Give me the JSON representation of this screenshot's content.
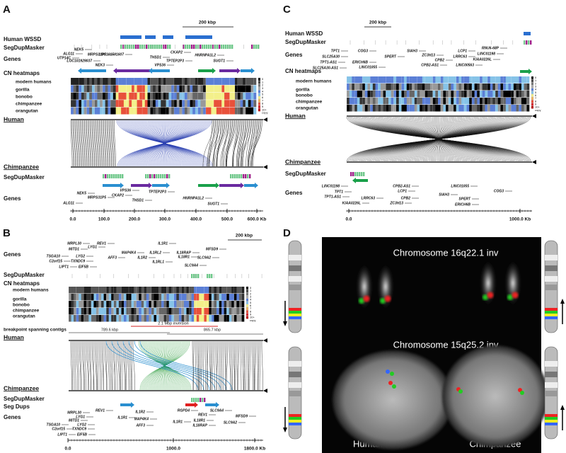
{
  "panels": {
    "A": {
      "label": "A",
      "scale": "200 kbp",
      "tracks_top": [
        "Human WSSD",
        "SegDupMasker",
        "Genes",
        "CN heatmaps"
      ],
      "cn_rows": [
        "modern humans",
        "gorilla",
        "bonobo",
        "chimpanzee",
        "orangutan"
      ],
      "cn_legend": [
        "0",
        "1",
        "2",
        "3",
        "4",
        "5",
        "6",
        "7",
        "8",
        "9",
        "10+",
        "copy"
      ],
      "human": "Human",
      "chimpanzee": "Chimpanzee",
      "tracks_bottom": [
        "SegDupMasker",
        "Genes"
      ],
      "genes_top": [
        "NEK5",
        "ALG11",
        "UTP14C",
        "MRPS31P5",
        "LOC101929037",
        "NEK3",
        "LOC101591607",
        "THSD1",
        "CKAP2",
        "TPTEP2P3",
        "VPS36",
        "HNRNPA1L2",
        "SUGT1"
      ],
      "genes_bottom": [
        "NEK5",
        "ALG11",
        "MRPS31P5",
        "VPS36",
        "CKAP2",
        "THSD1",
        "TPTEP2P3",
        "HNRNPA1L2",
        "SUGT1"
      ],
      "axis": [
        "0.0",
        "100.0",
        "200.0",
        "300.0",
        "400.0",
        "500.0",
        "600.0 Kb"
      ]
    },
    "B": {
      "label": "B",
      "scale": "200 kbp",
      "tracks_top": [
        "Genes",
        "SegDupMasker",
        "CN heatmaps"
      ],
      "cn_rows": [
        "modern humans",
        "gorilla",
        "bonobo",
        "chimpanzee",
        "orangutan"
      ],
      "cn_legend": [
        "0",
        "1",
        "2",
        "3",
        "4",
        "5",
        "6",
        "7",
        "8",
        "9",
        "10+",
        "copy"
      ],
      "contigs": "breakpoint spanning contigs",
      "contig_left": "789.6 kbp",
      "inversion": "2.1 Mbp inversion",
      "contig_right": "865.7 kbp",
      "human": "Human",
      "chimpanzee": "Chimpanzee",
      "tracks_bottom": [
        "SegDupMasker",
        "Seg Dups",
        "Genes"
      ],
      "genes_top": [
        "MRPL30",
        "REV1",
        "IL1R1",
        "MFSD9",
        "MITD1",
        "LYG1",
        "MAP4K4",
        "IL1RL2",
        "IL18RAP",
        "TSGA10",
        "C2orf15",
        "LYG2",
        "AFF3",
        "IL1R2",
        "IL18R1",
        "SLC9A2",
        "TXNDC9",
        "IL1RL1",
        "LIPT1",
        "EIF5B",
        "SLC9A4"
      ],
      "genes_bottom": [
        "MRPL30",
        "REV1",
        "IL1R2",
        "RGPD4",
        "SLC9A4",
        "MFSD9",
        "LYG1",
        "MITD1",
        "IL1R1",
        "REV1",
        "TSGA10",
        "C2orf15",
        "LYG2",
        "TXNDC9",
        "MAP4K4",
        "IL18R1",
        "AFF3",
        "IL1R1",
        "SLC9A2",
        "IL18RAP",
        "LIPT1",
        "EIF5B"
      ],
      "axis": [
        "0.0",
        "1000.0",
        "1800.0 Kb"
      ]
    },
    "C": {
      "label": "C",
      "scale": "200 kbp",
      "tracks_top": [
        "Human WSSD",
        "SegDupMasker",
        "Genes",
        "CN heatmaps"
      ],
      "cn_rows": [
        "modern humans",
        "gorilla",
        "bonobo",
        "chimpanzee",
        "orangutan"
      ],
      "cn_legend": [
        "0",
        "1",
        "2",
        "3",
        "4",
        "5",
        "6",
        "7",
        "8",
        "9",
        "10+",
        "copy"
      ],
      "human": "Human",
      "chimpanzee": "Chimpanzee",
      "tracks_bottom": [
        "SegDupMasker",
        "Genes"
      ],
      "genes_top": [
        "TPT1",
        "COG3",
        "SIAH3",
        "ZC3H13",
        "LCP1",
        "RNU6-68P",
        "SLC25A30",
        "SPERT",
        "CPB2",
        "LRRC63",
        "LINC01198",
        "TPT1-AS1",
        "ERICH6B",
        "CPB2-AS1",
        "KIAA0226L",
        "SLC25A30-AS1",
        "LINC01055",
        "LINC00563"
      ],
      "genes_bottom": [
        "LINC01198",
        "TPT1",
        "TPT1-AS1",
        "CPB2-AS1",
        "LINC01055",
        "COG3",
        "LRRC63",
        "LCP1",
        "CPB2",
        "SIAH3",
        "SPERT",
        "KIAA0226L",
        "ZC3H13",
        "ERICH6B"
      ],
      "axis": [
        "0.0",
        "1000.0 Kb"
      ]
    },
    "D": {
      "label": "D",
      "title_top": "Chromosome 16q22.1 inv",
      "title_bottom": "Chromosome 15q25.2 inv",
      "human": "Human",
      "chimpanzee": "Chimpanzee"
    }
  }
}
